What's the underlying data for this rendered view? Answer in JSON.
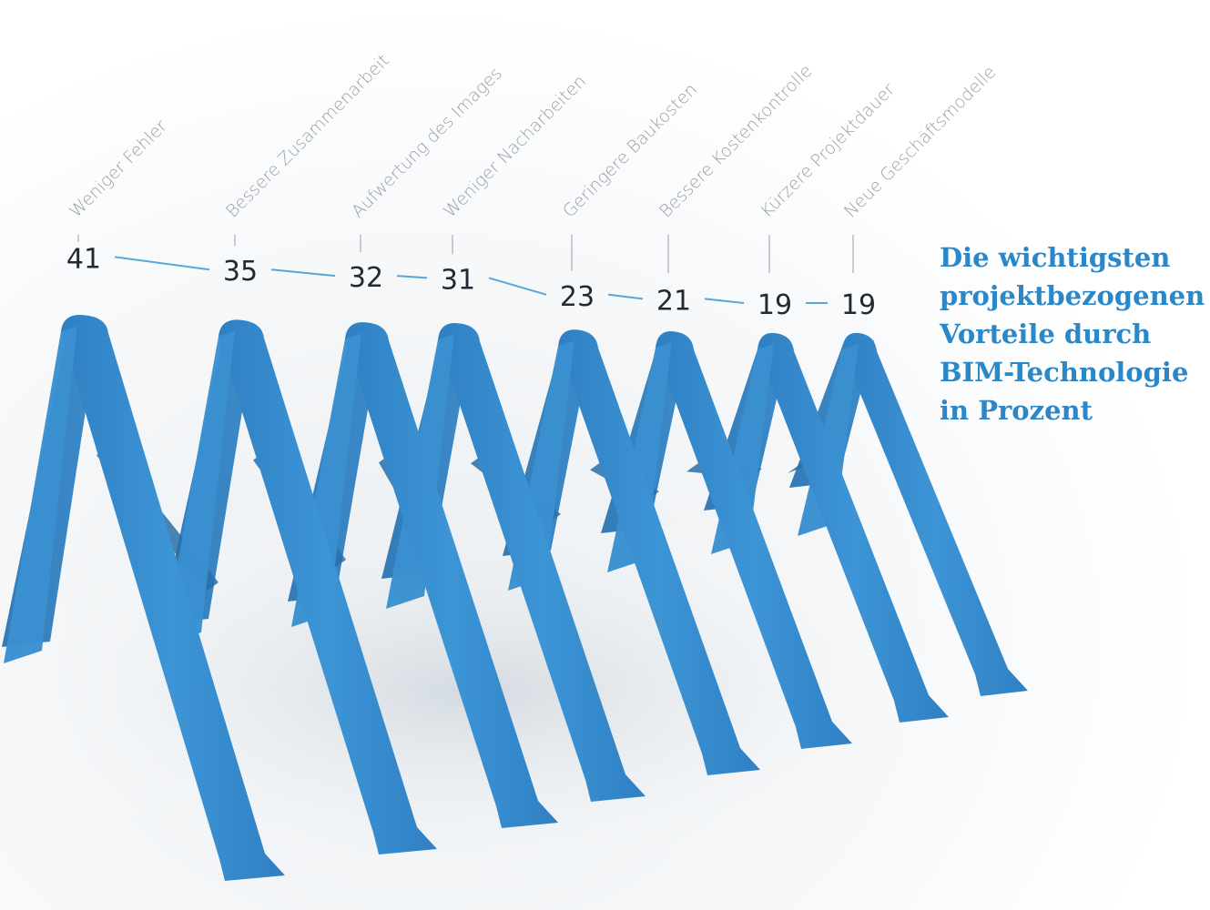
{
  "colors": {
    "ribbon": "#3a8fd0",
    "ribbon_shadow": "#2a6fa8",
    "connector": "#5aa6d6",
    "label_gray": "#9aa0a6",
    "value_dark": "#1f2a33",
    "title_blue": "#2b87c8"
  },
  "chart_data": {
    "type": "line",
    "title_lines": [
      "Die wichtigsten",
      "projektbezogenen",
      "Vorteile durch",
      "BIM-Technologie",
      "in Prozent"
    ],
    "categories": [
      "Weniger Fehler",
      "Bessere Zusammenarbeit",
      "Aufwertung des Images",
      "Weniger Nacharbeiten",
      "Geringere Baukosten",
      "Bessere Kostenkontrolle",
      "Kürzere Projektdauer",
      "Neue Geschäftsmodelle"
    ],
    "values": [
      41,
      35,
      32,
      31,
      23,
      21,
      19,
      19
    ],
    "value_labels": [
      "41",
      "35",
      "32",
      "31",
      "23",
      "21",
      "19",
      "19"
    ],
    "xlabel": "",
    "ylabel": "",
    "grid": false,
    "legend": "none"
  }
}
